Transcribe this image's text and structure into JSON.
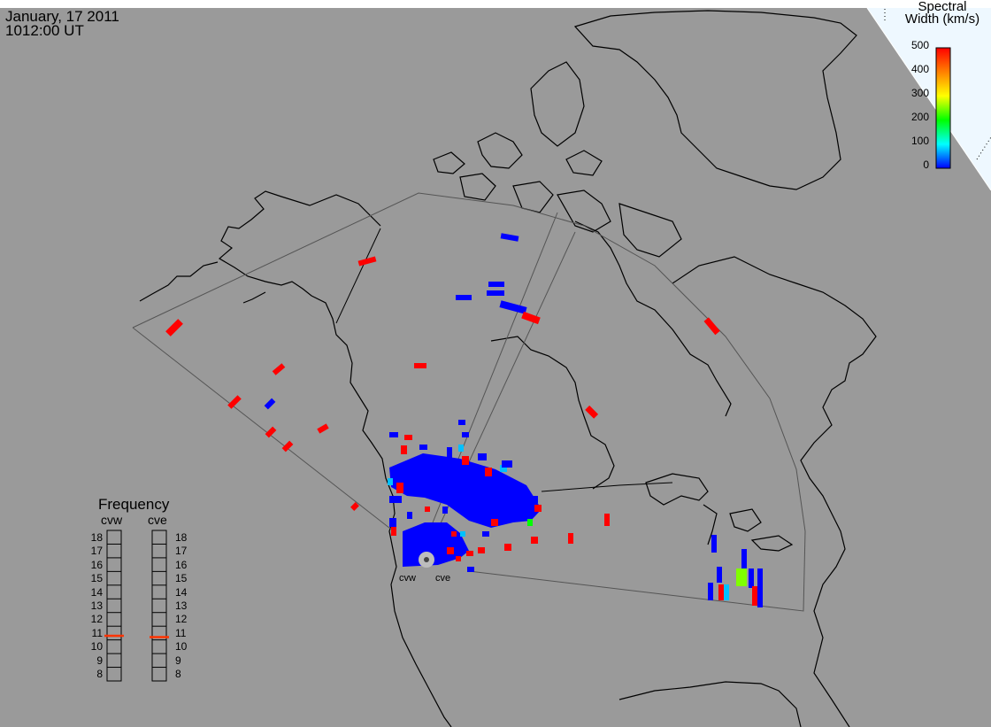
{
  "header": {
    "date": "January, 17 2011",
    "time": "1012:00 UT"
  },
  "colorbar": {
    "title_line1": "Spectral",
    "title_line2": "Width (km/s)",
    "ticks": [
      "500",
      "400",
      "300",
      "200",
      "100",
      "0"
    ],
    "colors": [
      "#ff0000",
      "#ff8000",
      "#ffff00",
      "#00ff00",
      "#00ffff",
      "#0000ff"
    ]
  },
  "frequency": {
    "title": "Frequency",
    "radars": [
      "cvw",
      "cve"
    ],
    "scale": [
      "18",
      "17",
      "16",
      "15",
      "14",
      "13",
      "12",
      "11",
      "10",
      "9",
      "8"
    ],
    "cvw_value": 10.8,
    "cve_value": 10.7
  },
  "sites": {
    "west": "cvw",
    "east": "cve"
  },
  "colors": {
    "background": "#9a9a9a",
    "low_width": "#0000ff",
    "high_width": "#ff0000",
    "mid_width": "#00c0ff",
    "green": "#80ff00"
  }
}
